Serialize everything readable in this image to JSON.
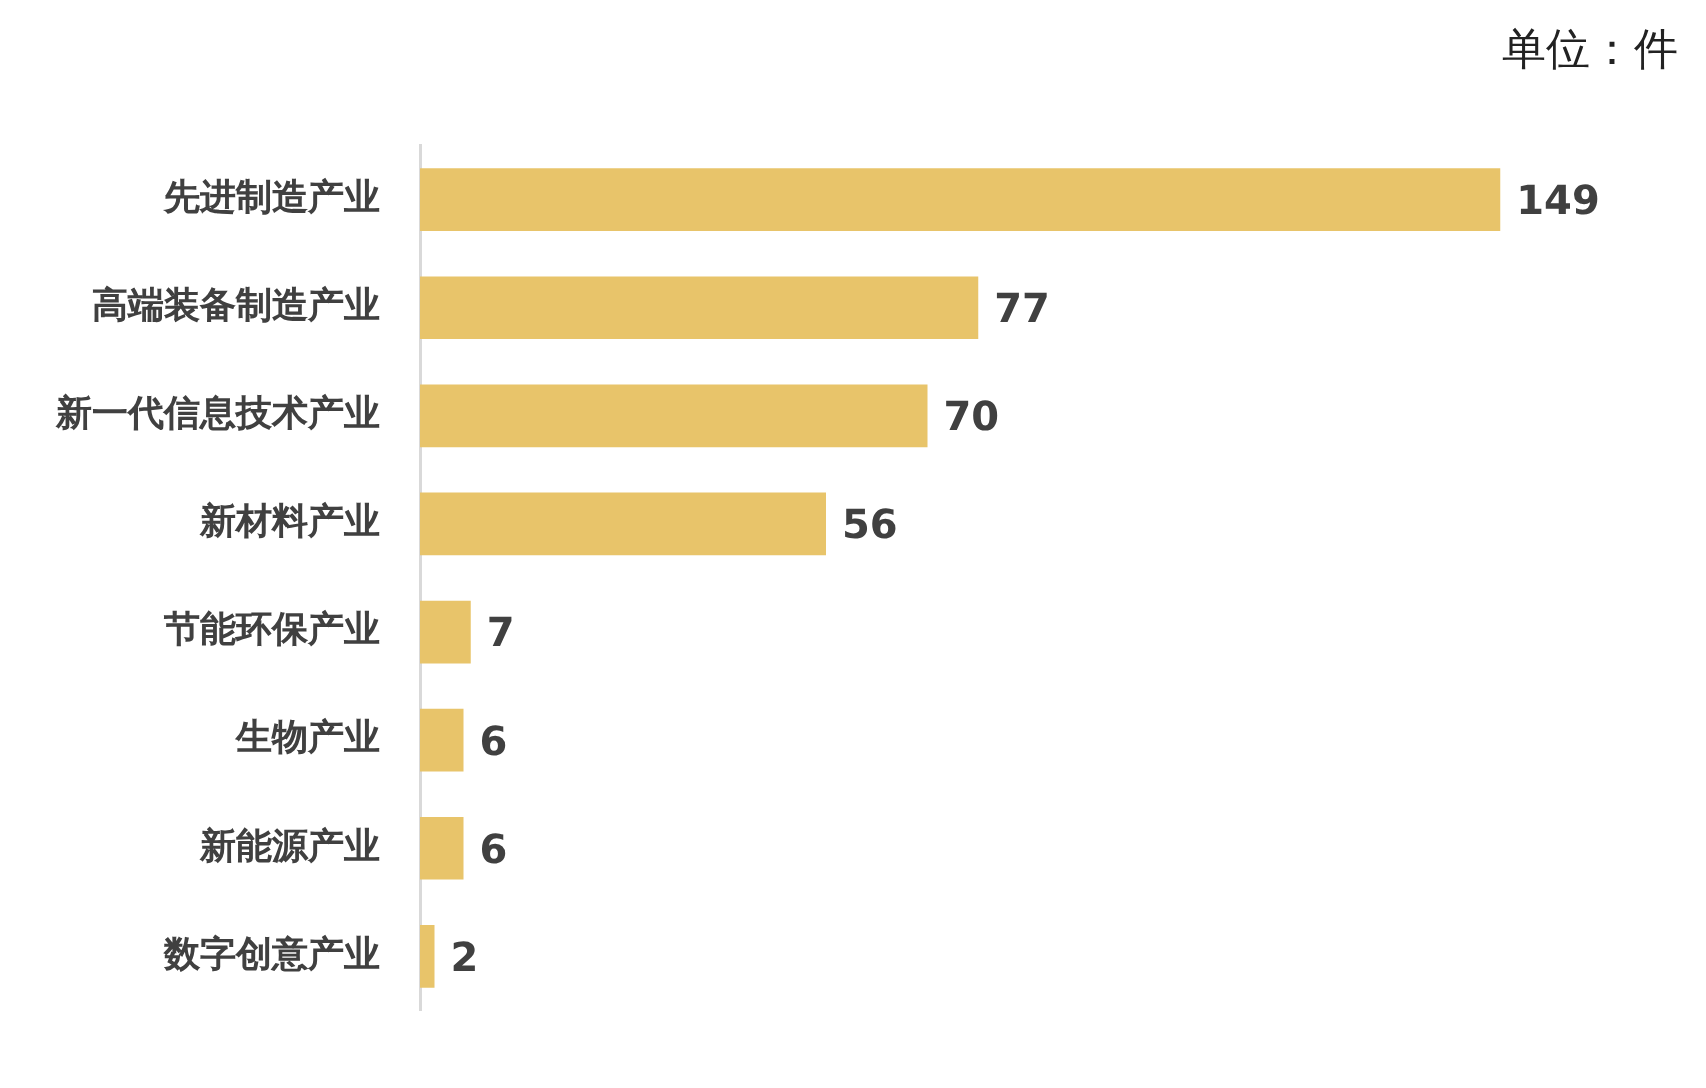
{
  "chart_data": {
    "type": "bar",
    "orientation": "horizontal",
    "categories": [
      "先进制造产业",
      "高端装备制造产业",
      "新一代信息技术产业",
      "新材料产业",
      "节能环保产业",
      "生物产业",
      "新能源产业",
      "数字创意产业"
    ],
    "values": [
      149,
      77,
      70,
      56,
      7,
      6,
      6,
      2
    ],
    "color": "#e8c46a",
    "data_labels": true,
    "annotations": [
      "单位：件"
    ]
  }
}
